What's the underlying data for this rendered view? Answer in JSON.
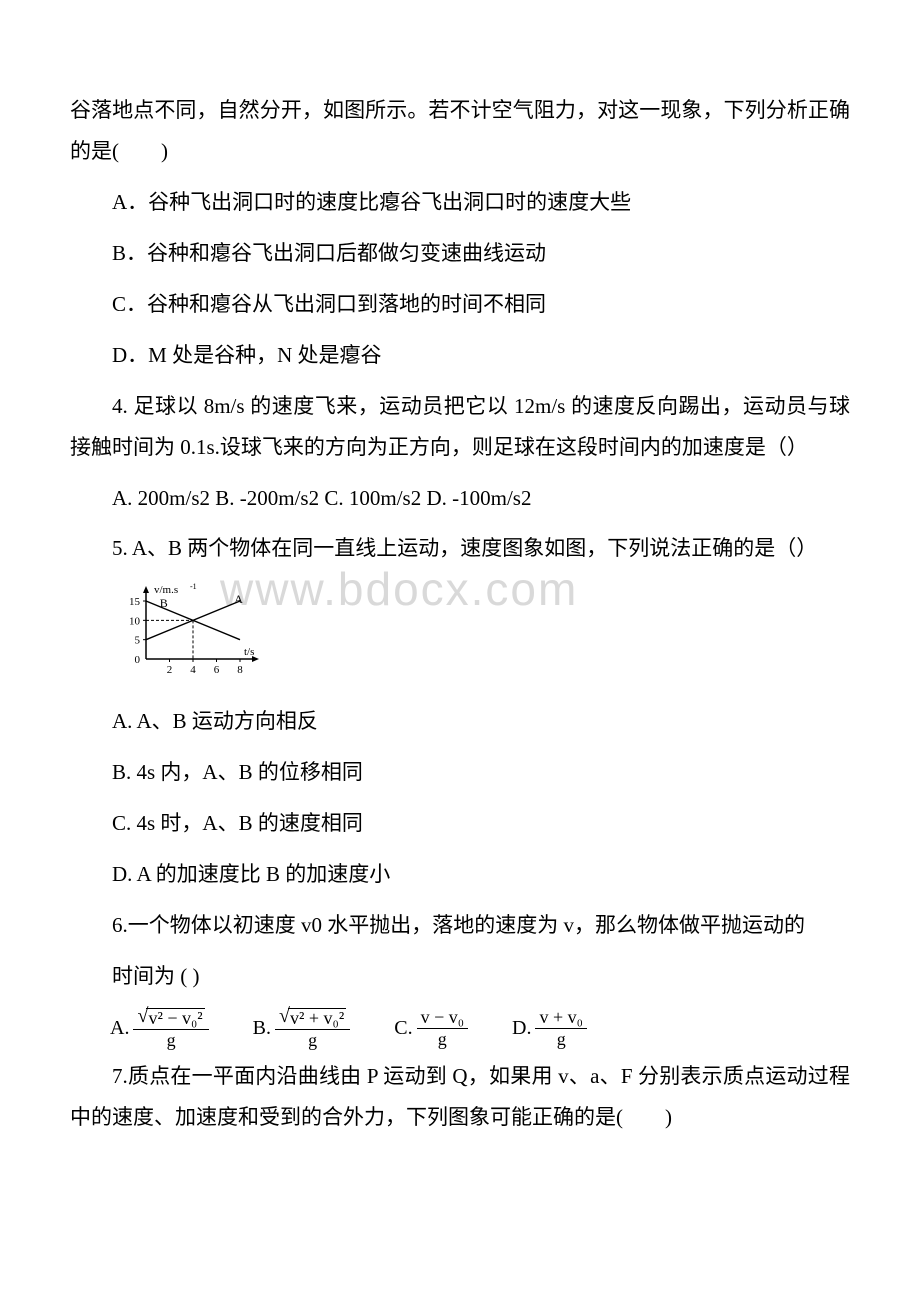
{
  "watermark": "www.bdocx.com",
  "q3": {
    "stem_cont": "谷落地点不同，自然分开，如图所示。若不计空气阻力，对这一现象，下列分析正确的是(　　)",
    "optA": "A．谷种飞出洞口时的速度比瘪谷飞出洞口时的速度大些",
    "optB": "B．谷种和瘪谷飞出洞口后都做匀变速曲线运动",
    "optC": "C．谷种和瘪谷从飞出洞口到落地的时间不相同",
    "optD": "D．M 处是谷种，N 处是瘪谷"
  },
  "q4": {
    "stem": "4. 足球以 8m/s 的速度飞来，运动员把它以 12m/s 的速度反向踢出，运动员与球接触时间为 0.1s.设球飞来的方向为正方向，则足球在这段时间内的加速度是（）",
    "opts": "A. 200m/s2 B. -200m/s2 C. 100m/s2 D. -100m/s2"
  },
  "q5": {
    "stem": "5. A、B 两个物体在同一直线上运动，速度图象如图，下列说法正确的是（）",
    "optA": "A. A、B 运动方向相反",
    "optB": "B. 4s 内，A、B 的位移相同",
    "optC": "C. 4s 时，A、B 的速度相同",
    "optD": "D. A 的加速度比 B 的加速度小",
    "graph": {
      "width": 158,
      "height": 100,
      "axis_color": "#000000",
      "line_color": "#000000",
      "y_label": "v/m.s",
      "y_label_sup": "-1",
      "x_label": "t/s",
      "y_ticks": [
        "0",
        "5",
        "10",
        "15"
      ],
      "x_ticks": [
        "2",
        "4",
        "6",
        "8"
      ],
      "labelA": "A",
      "labelB": "B"
    }
  },
  "q6": {
    "stem": "6.一个物体以初速度 v0 水平抛出，落地的速度为 v，那么物体做平抛运动的",
    "stem2": "时间为 (  )",
    "formulas": {
      "A": {
        "label": "A.",
        "num_inner": "v² − v₀²",
        "den": "g",
        "sqrt": true
      },
      "B": {
        "label": "B.",
        "num_inner": "v² + v₀²",
        "den": "g",
        "sqrt": true
      },
      "C": {
        "label": "C.",
        "num_inner": "v − v₀",
        "den": "g",
        "sqrt": false
      },
      "D": {
        "label": "D.",
        "num_inner": "v + v₀",
        "den": "g",
        "sqrt": false
      }
    }
  },
  "q7": {
    "stem": "7.质点在一平面内沿曲线由 P 运动到 Q，如果用 v、a、F 分别表示质点运动过程中的速度、加速度和受到的合外力，下列图象可能正确的是(　　)"
  }
}
